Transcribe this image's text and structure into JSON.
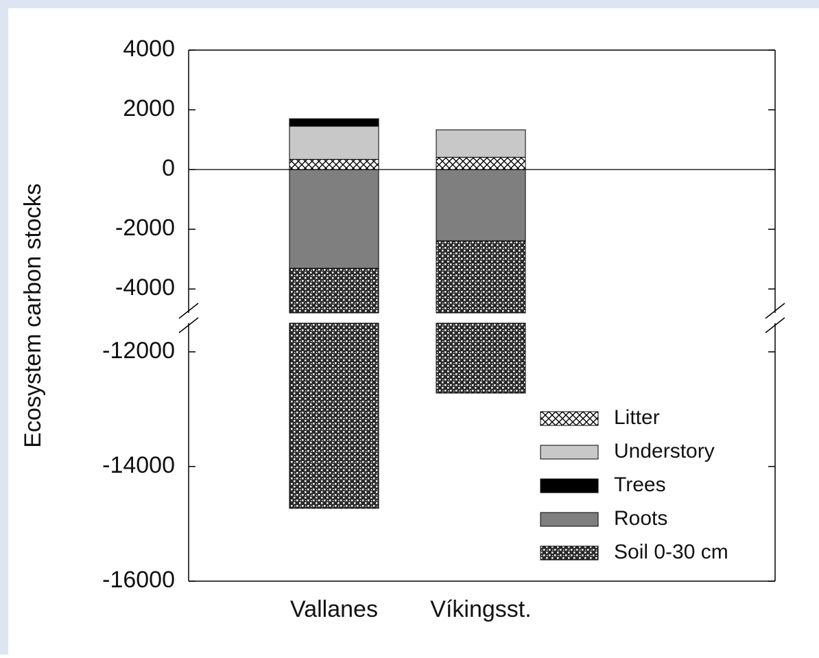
{
  "chart_data": {
    "type": "stacked_bar",
    "y_label": "Ecosystem carbon stocks",
    "categories": [
      "Vallanes",
      "Víkingsst."
    ],
    "series": [
      {
        "name": "Litter",
        "color": "#ffffff",
        "pattern": "crosshatch",
        "values": [
          340,
          410
        ]
      },
      {
        "name": "Understory",
        "color": "#c8c8c8",
        "values": [
          1110,
          920
        ]
      },
      {
        "name": "Trees",
        "color": "#000000",
        "values": [
          250,
          0
        ]
      },
      {
        "name": "Roots",
        "color": "#7f7f7f",
        "values": [
          -3310,
          -2390
        ]
      },
      {
        "name": "Soil 0-30 cm",
        "color": "#2a2a2a",
        "pattern": "dots",
        "values": [
          -11420,
          -10330
        ]
      }
    ],
    "ylim": [
      -16000,
      4000
    ],
    "axis_break": [
      -11500,
      -4800
    ],
    "yticks": [
      4000,
      2000,
      0,
      -2000,
      -4000,
      -12000,
      -14000,
      -16000
    ],
    "legend": "lower right"
  }
}
